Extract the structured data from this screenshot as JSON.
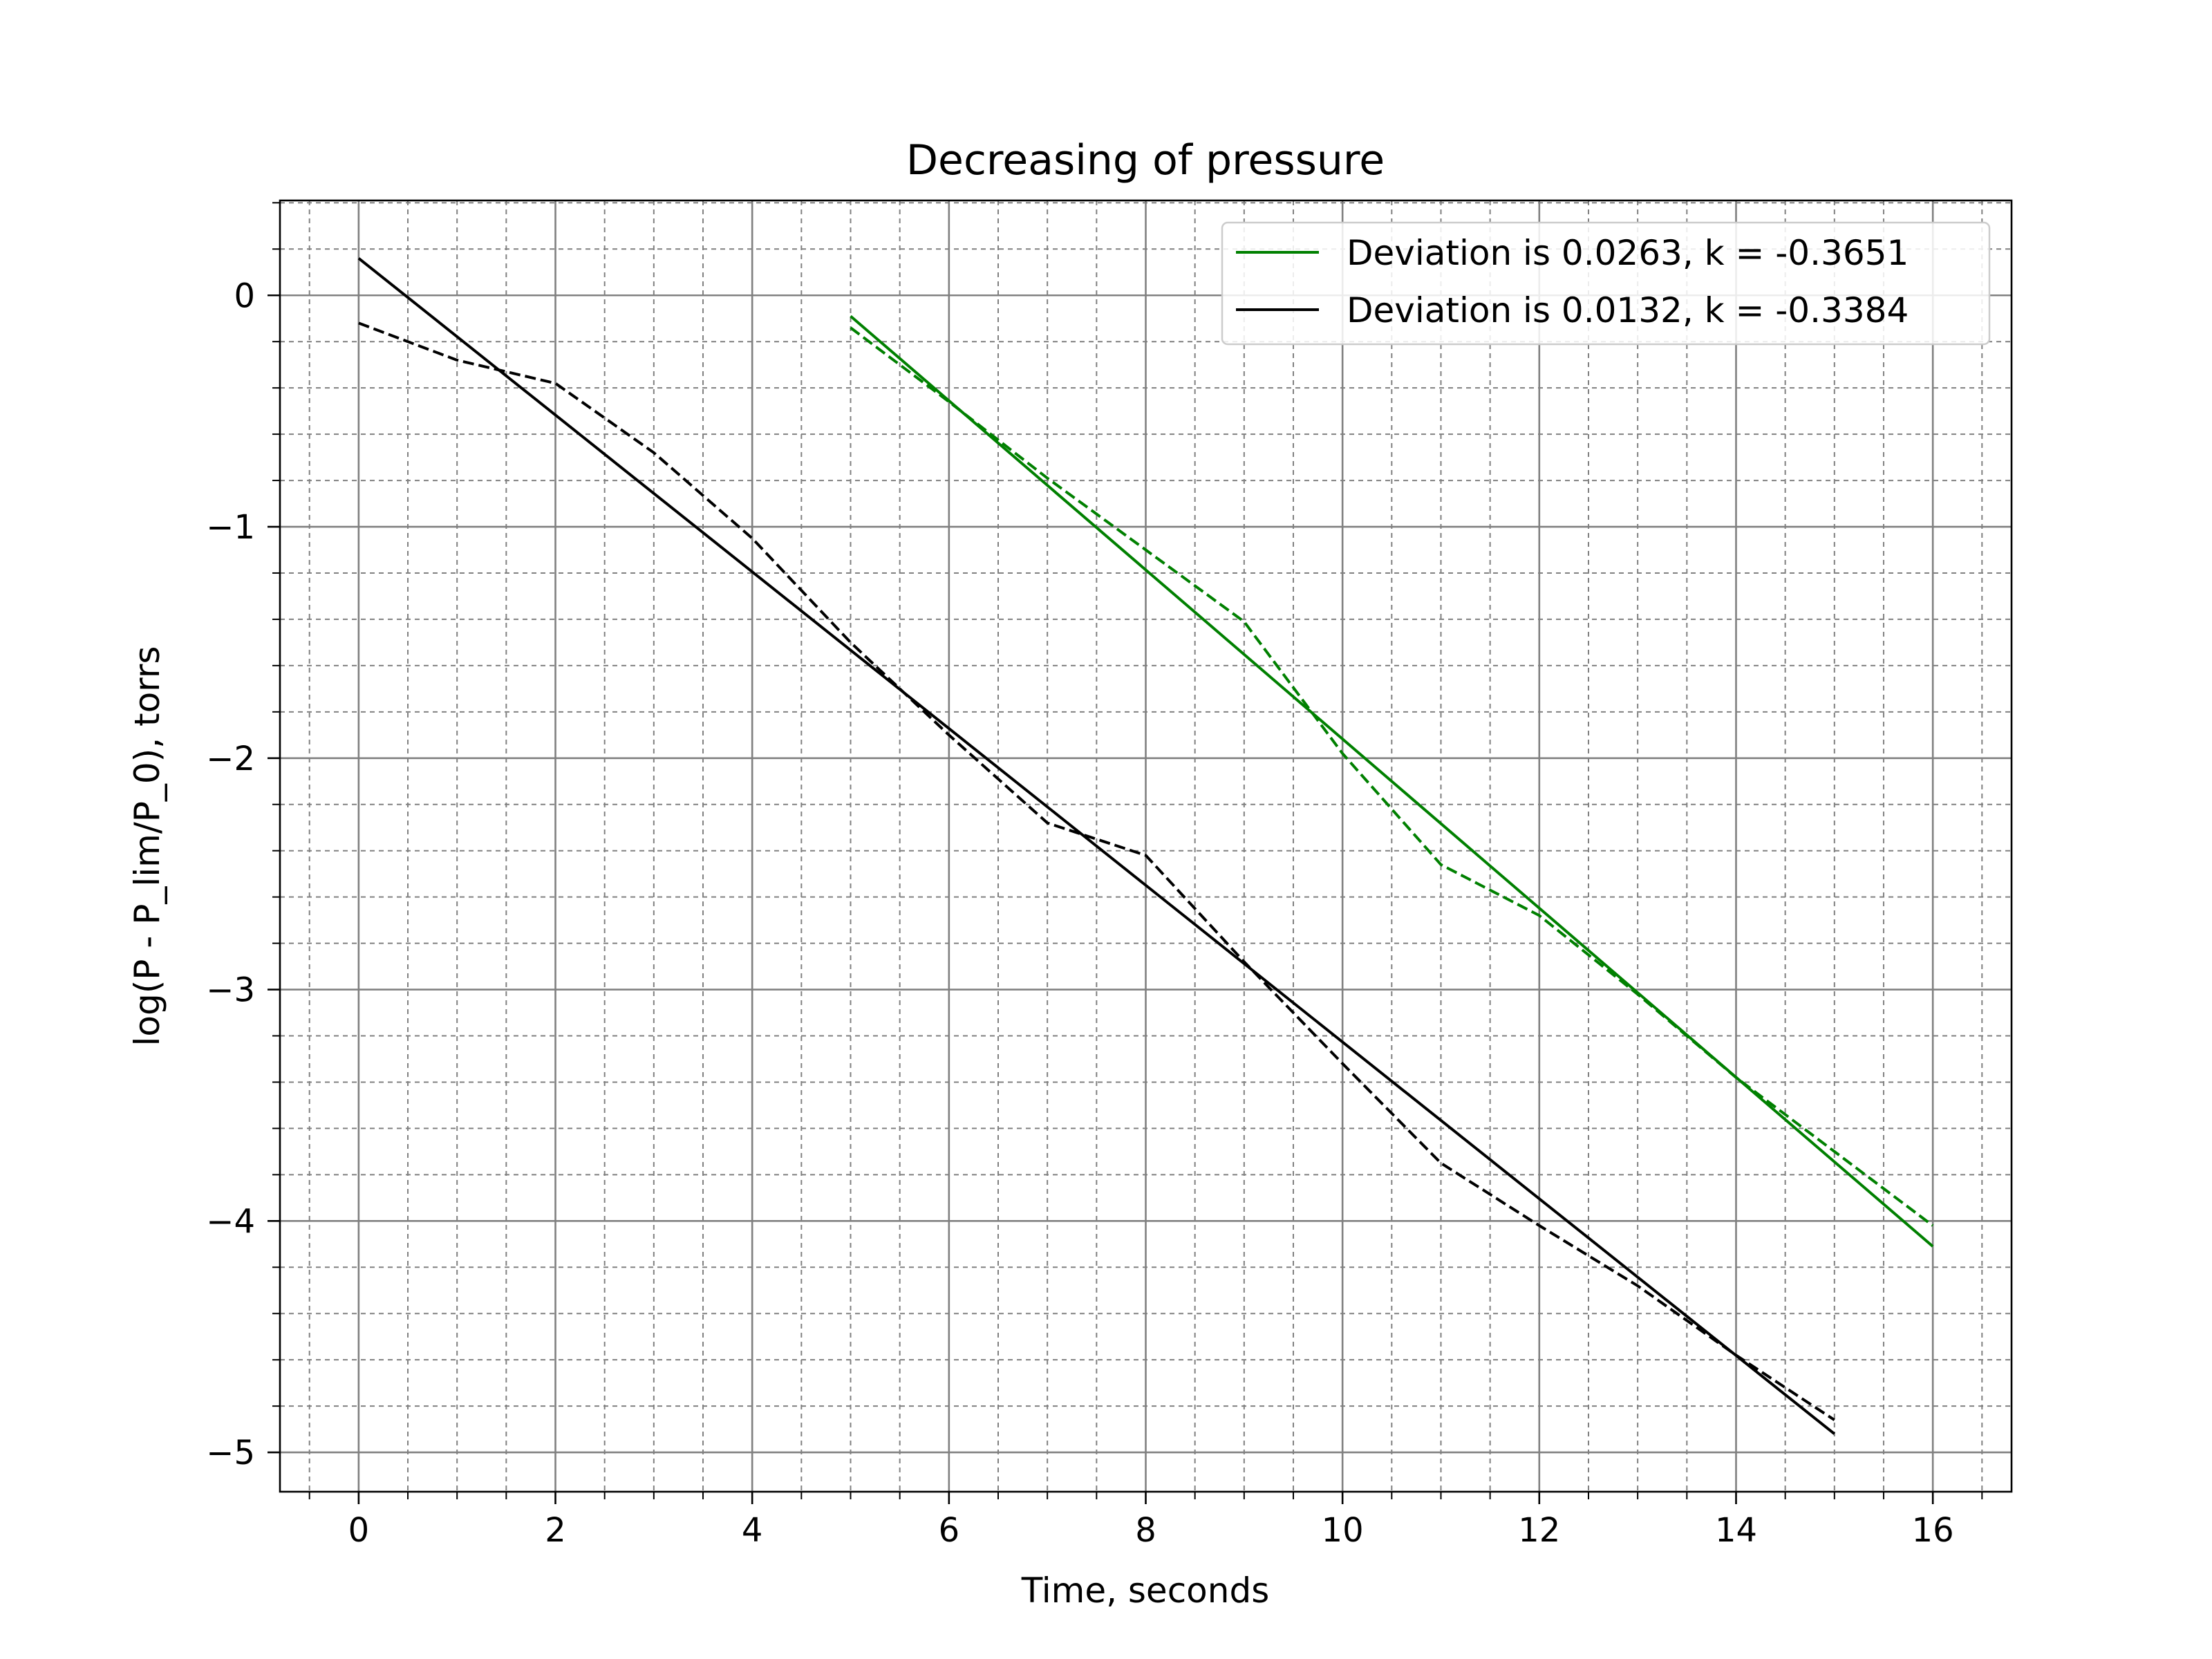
{
  "chart_data": {
    "type": "line",
    "title": "Decreasing of pressure",
    "xlabel": "Time, seconds",
    "ylabel": "log(P - P_lim/P_0), torrs",
    "xlim": [
      -0.8,
      16.8
    ],
    "ylim": [
      -5.17,
      0.41
    ],
    "x_ticks": [
      0,
      2,
      4,
      6,
      8,
      10,
      12,
      14,
      16
    ],
    "x_tick_labels": [
      "0",
      "2",
      "4",
      "6",
      "8",
      "10",
      "12",
      "14",
      "16"
    ],
    "y_ticks": [
      0,
      -1,
      -2,
      -3,
      -4,
      -5
    ],
    "y_tick_labels": [
      "0",
      "−1",
      "−2",
      "−3",
      "−4",
      "−5"
    ],
    "x_minor_step": 0.5,
    "y_minor_step": 0.2,
    "grid": true,
    "legend_position": "top-right",
    "series": [
      {
        "name": "Deviation is 0.0263, k = -0.3651",
        "color": "#008000",
        "style": "solid",
        "x": [
          5,
          16
        ],
        "y": [
          -0.09,
          -4.11
        ]
      },
      {
        "color": "#008000",
        "style": "dashed",
        "x": [
          5,
          6,
          7,
          8,
          9,
          10,
          11,
          12,
          13,
          14,
          15,
          16
        ],
        "y": [
          -0.14,
          -0.46,
          -0.79,
          -1.1,
          -1.41,
          -1.98,
          -2.46,
          -2.68,
          -3.02,
          -3.38,
          -3.7,
          -4.02
        ]
      },
      {
        "name": "Deviation is 0.0132, k = -0.3384",
        "color": "#000000",
        "style": "solid",
        "x": [
          0,
          15
        ],
        "y": [
          0.16,
          -4.92
        ]
      },
      {
        "color": "#000000",
        "style": "dashed",
        "x": [
          0,
          1,
          2,
          3,
          4,
          5,
          6,
          7,
          8,
          9,
          10,
          11,
          12,
          13,
          14,
          15
        ],
        "y": [
          -0.12,
          -0.28,
          -0.38,
          -0.68,
          -1.05,
          -1.5,
          -1.9,
          -2.28,
          -2.42,
          -2.88,
          -3.32,
          -3.75,
          -4.02,
          -4.28,
          -4.58,
          -4.86
        ]
      }
    ]
  }
}
